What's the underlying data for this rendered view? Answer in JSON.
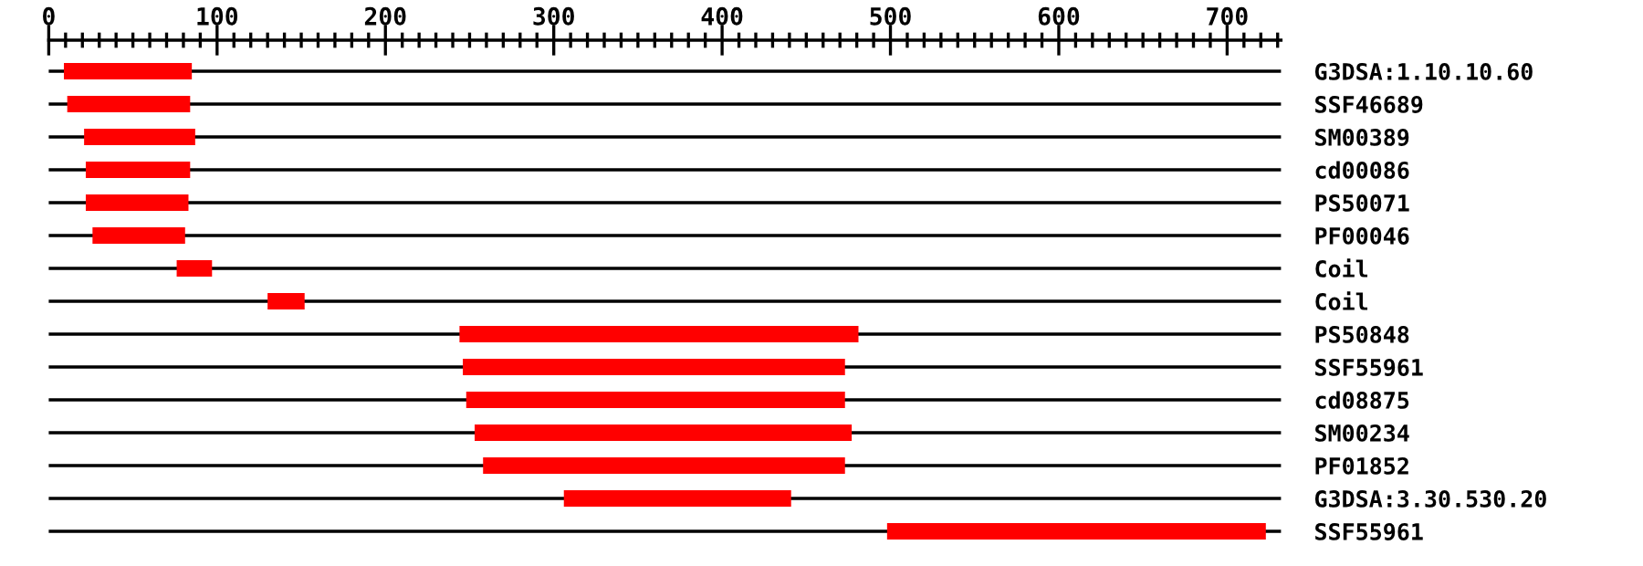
{
  "chart_data": {
    "type": "bar",
    "orientation": "horizontal",
    "color": "#ff0000",
    "grid": "y",
    "categories": [
      "G3DSA:1.10.10.60",
      "SSF46689",
      "SM00389",
      "cd00086",
      "PS50071",
      "PF00046",
      "Coil",
      "Coil",
      "PS50848",
      "SSF55961",
      "cd08875",
      "SM00234",
      "PF01852",
      "G3DSA:3.30.530.20",
      "SSF55961"
    ],
    "base": [
      9,
      11,
      21,
      22,
      22,
      26,
      76,
      130,
      244,
      246,
      248,
      253,
      258,
      306,
      498
    ],
    "values": [
      76,
      73,
      66,
      62,
      61,
      55,
      21,
      22,
      237,
      227,
      225,
      224,
      215,
      135,
      225
    ],
    "xlim": [
      0,
      732
    ],
    "xticks": [
      0,
      {
        "value": 10,
        "label": null
      },
      {
        "value": 20,
        "label": null
      },
      {
        "value": 30,
        "label": null
      },
      {
        "value": 40,
        "label": null
      },
      {
        "value": 50,
        "label": null
      },
      {
        "value": 60,
        "label": null
      },
      {
        "value": 70,
        "label": null
      },
      {
        "value": 80,
        "label": null
      },
      {
        "value": 90,
        "label": null
      },
      100,
      {
        "value": 110,
        "label": null
      },
      {
        "value": 120,
        "label": null
      },
      {
        "value": 130,
        "label": null
      },
      {
        "value": 140,
        "label": null
      },
      {
        "value": 150,
        "label": null
      },
      {
        "value": 160,
        "label": null
      },
      {
        "value": 170,
        "label": null
      },
      {
        "value": 180,
        "label": null
      },
      {
        "value": 190,
        "label": null
      },
      200,
      {
        "value": 210,
        "label": null
      },
      {
        "value": 220,
        "label": null
      },
      {
        "value": 230,
        "label": null
      },
      {
        "value": 240,
        "label": null
      },
      {
        "value": 250,
        "label": null
      },
      {
        "value": 260,
        "label": null
      },
      {
        "value": 270,
        "label": null
      },
      {
        "value": 280,
        "label": null
      },
      {
        "value": 290,
        "label": null
      },
      300,
      {
        "value": 310,
        "label": null
      },
      {
        "value": 320,
        "label": null
      },
      {
        "value": 330,
        "label": null
      },
      {
        "value": 340,
        "label": null
      },
      {
        "value": 350,
        "label": null
      },
      {
        "value": 360,
        "label": null
      },
      {
        "value": 370,
        "label": null
      },
      {
        "value": 380,
        "label": null
      },
      {
        "value": 390,
        "label": null
      },
      400,
      {
        "value": 410,
        "label": null
      },
      {
        "value": 420,
        "label": null
      },
      {
        "value": 430,
        "label": null
      },
      {
        "value": 440,
        "label": null
      },
      {
        "value": 450,
        "label": null
      },
      {
        "value": 460,
        "label": null
      },
      {
        "value": 470,
        "label": null
      },
      {
        "value": 480,
        "label": null
      },
      {
        "value": 490,
        "label": null
      },
      500,
      {
        "value": 510,
        "label": null
      },
      {
        "value": 520,
        "label": null
      },
      {
        "value": 530,
        "label": null
      },
      {
        "value": 540,
        "label": null
      },
      {
        "value": 550,
        "label": null
      },
      {
        "value": 560,
        "label": null
      },
      {
        "value": 570,
        "label": null
      },
      {
        "value": 580,
        "label": null
      },
      {
        "value": 590,
        "label": null
      },
      600,
      {
        "value": 610,
        "label": null
      },
      {
        "value": 620,
        "label": null
      },
      {
        "value": 630,
        "label": null
      },
      {
        "value": 640,
        "label": null
      },
      {
        "value": 650,
        "label": null
      },
      {
        "value": 660,
        "label": null
      },
      {
        "value": 670,
        "label": null
      },
      {
        "value": 680,
        "label": null
      },
      {
        "value": 690,
        "label": null
      },
      700,
      {
        "value": 710,
        "label": null
      },
      {
        "value": 720,
        "label": null
      },
      {
        "value": 730,
        "label": null
      }
    ]
  }
}
